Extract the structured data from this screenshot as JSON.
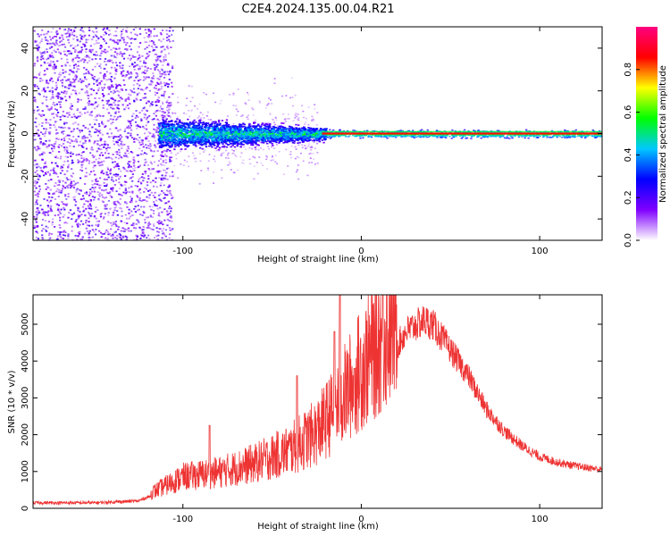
{
  "title": "C2E4.2024.135.00.04.R21",
  "chart_data": [
    {
      "type": "heatmap",
      "xlabel": "Height of straight line (km)",
      "ylabel": "Frequency (Hz)",
      "xlim": [
        -184,
        135
      ],
      "ylim": [
        -50,
        50
      ],
      "xticks": [
        -100,
        0,
        100
      ],
      "yticks": [
        -40,
        -20,
        0,
        20,
        40
      ],
      "colorbar": {
        "label": "Normalized spectral amplitude",
        "range": [
          0.0,
          1.0
        ],
        "ticks": [
          "0.0",
          "0.2",
          "0.4",
          "0.6",
          "0.8"
        ],
        "tick_values": [
          0.0,
          0.2,
          0.4,
          0.6,
          0.8
        ],
        "colors": [
          "#ffffff",
          "#8000ff",
          "#0000ff",
          "#00c8ff",
          "#00ff00",
          "#ffff00",
          "#ff0000",
          "#ff0080"
        ]
      },
      "regions": [
        {
          "x_range": [
            -184,
            -114
          ],
          "freq_half_width": 50,
          "level": 0.15,
          "description": "broadband noise"
        },
        {
          "x_range": [
            -114,
            -20
          ],
          "freq_half_width": 7,
          "level": 0.35
        },
        {
          "x_range": [
            -20,
            135
          ],
          "freq_half_width": 1.5,
          "level": 0.85
        }
      ]
    },
    {
      "type": "line",
      "xlabel": "Height of straight line (km)",
      "ylabel": "SNR (10 * v/v)",
      "xlim": [
        -184,
        135
      ],
      "ylim": [
        0,
        5800
      ],
      "xticks": [
        -100,
        0,
        100
      ],
      "yticks": [
        0,
        1000,
        2000,
        3000,
        4000,
        5000
      ],
      "color": "#ee3333",
      "envelope": {
        "x": [
          -184,
          -150,
          -125,
          -115,
          -100,
          -80,
          -60,
          -40,
          -25,
          -15,
          -5,
          5,
          15,
          25,
          35,
          40,
          50,
          60,
          70,
          80,
          90,
          100,
          110,
          120,
          135
        ],
        "y": [
          150,
          150,
          200,
          400,
          700,
          800,
          1000,
          1300,
          1700,
          2200,
          2800,
          3400,
          4000,
          4800,
          5100,
          5000,
          4300,
          3600,
          2700,
          2100,
          1700,
          1400,
          1250,
          1150,
          1050
        ]
      },
      "spikes": [
        {
          "x": -12,
          "y": 5800
        },
        {
          "x": 12,
          "y": 5800
        },
        {
          "x": -15,
          "y": 4800
        },
        {
          "x": -36,
          "y": 3600
        },
        {
          "x": -85,
          "y": 2250
        },
        {
          "x": -4,
          "y": 3800
        }
      ]
    }
  ]
}
